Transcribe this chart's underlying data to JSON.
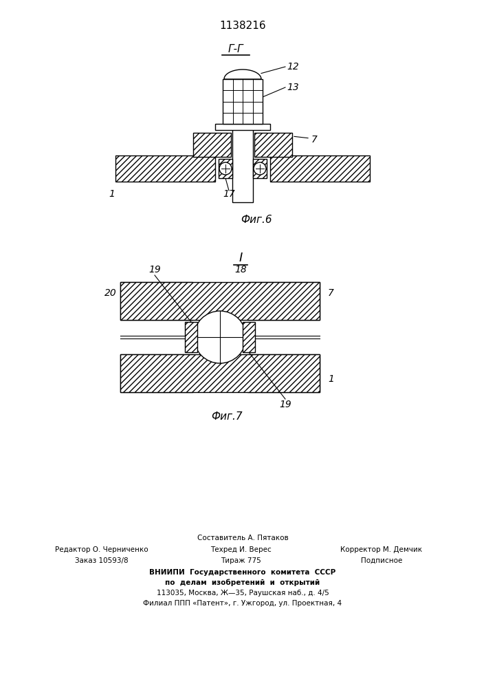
{
  "title": "1138216",
  "fig6_label": "Фиг.6",
  "fig7_label": "Фиг.7",
  "section_label_fig6": "Г-Г",
  "section_label_fig7": "I",
  "label_12": "12",
  "label_13": "13",
  "label_7a": "7",
  "label_1a": "1",
  "label_17": "17",
  "label_20": "20",
  "label_19a": "19",
  "label_18": "18",
  "label_7b": "7",
  "label_19b": "19",
  "label_1b": "1",
  "bg_color": "#ffffff",
  "line_color": "#000000",
  "footer_line1": "Составитель А. Пятаков",
  "footer_line2_left": "Редактор О. Черниченко",
  "footer_line2_mid": "Техред И. Верес",
  "footer_line2_right": "Корректор М. Демчик",
  "footer_line3_left": "Заказ 10593/8",
  "footer_line3_mid": "Тираж 775",
  "footer_line3_right": "Подписное",
  "footer_line4": "ВНИИПИ  Государственного  комитета  СССР",
  "footer_line5": "по  делам  изобретений  и  открытий",
  "footer_line6": "113035, Москва, Ж—35, Раушская наб., д. 4/5",
  "footer_line7": "Филиал ППП «Патент», г. Ужгород, ул. Проектная, 4"
}
